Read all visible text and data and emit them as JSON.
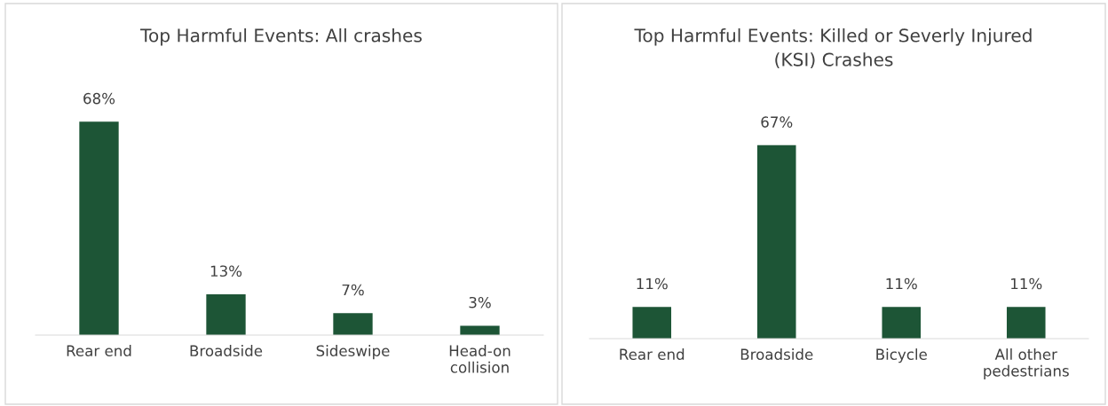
{
  "chart_data": [
    {
      "type": "bar",
      "title": "Top Harmful Events: All crashes",
      "categories": [
        "Rear end",
        "Broadside",
        "Sideswipe",
        "Head-on\ncollision"
      ],
      "values": [
        68,
        13,
        7,
        3
      ],
      "value_labels": [
        "68%",
        "13%",
        "7%",
        "3%"
      ],
      "color": "#1d5536"
    },
    {
      "type": "bar",
      "title": "Top Harmful Events: Killed or Severly Injured\n(KSI) Crashes",
      "categories": [
        "Rear end",
        "Broadside",
        "Bicycle",
        "All other\npedestrians"
      ],
      "values": [
        11,
        67,
        11,
        11
      ],
      "value_labels": [
        "11%",
        "67%",
        "11%",
        "11%"
      ],
      "color": "#1d5536"
    }
  ]
}
